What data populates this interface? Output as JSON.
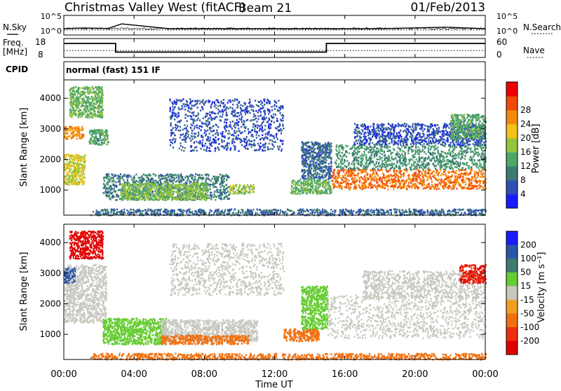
{
  "header": {
    "site": "Christmas Valley West (fitACF)",
    "beam": "Beam 21",
    "date": "01/Feb/2013"
  },
  "labels": {
    "nsky": "N.Sky",
    "nsearch": "N.Search",
    "freq_line1": "Freq.",
    "freq_line2": "[MHz]",
    "nave": "Nave",
    "cpid": "CPID",
    "cpid_value": "normal (fast) 151 IF",
    "slant_range": "Slant Range [km]",
    "time_ut": "Time UT"
  },
  "colors": {
    "power_scale": [
      "#1a1aff",
      "#2e4fb3",
      "#3d7a73",
      "#4da66a",
      "#96c43c",
      "#f2c21a",
      "#f58a0a",
      "#f04a0a",
      "#ee0000"
    ],
    "velocity_scale": [
      "#1a1aff",
      "#2b55a8",
      "#3d7a70",
      "#66cc33",
      "#c8c8c0",
      "#f0a020",
      "#f07010",
      "#ee3010",
      "#e00000"
    ],
    "ground_scatter_gray": "#c8c8c0"
  },
  "chart_data": [
    {
      "id": "noise_panel",
      "type": "line",
      "title": "",
      "xlabel": "",
      "ylabel_left": "N.Sky",
      "ylabel_right": "N.Search",
      "left_ticks": [
        "10^5",
        "10^0"
      ],
      "right_ticks": [
        "10^5",
        "10^0"
      ],
      "series": [
        {
          "name": "N.Sky",
          "style": "solid",
          "x": [
            0,
            0.3,
            1.2,
            2.5,
            3.3,
            6,
            10,
            14,
            18,
            21.8,
            24
          ],
          "y": [
            40,
            45,
            60,
            45,
            700,
            40,
            40,
            40,
            40,
            100,
            40
          ]
        },
        {
          "name": "N.Search",
          "style": "dotted",
          "x": [
            0,
            24
          ],
          "y": [
            20,
            20
          ]
        }
      ]
    },
    {
      "id": "freq_panel",
      "type": "line",
      "title": "",
      "xlabel": "",
      "ylabel_left": "Freq. [MHz]",
      "ylabel_right": "Nave",
      "left_ticks": [
        "18",
        "8"
      ],
      "right_ticks": [
        "60",
        "0"
      ],
      "ylim_left": [
        8,
        18
      ],
      "ylim_right": [
        0,
        60
      ],
      "series": [
        {
          "name": "Freq.",
          "style": "solid",
          "x": [
            0,
            2.95,
            2.95,
            14.95,
            14.95,
            24
          ],
          "y": [
            15.4,
            15.4,
            10.8,
            10.8,
            15.4,
            15.4
          ]
        },
        {
          "name": "Nave",
          "style": "dotted",
          "x": [
            0,
            24
          ],
          "y": [
            22,
            22
          ]
        }
      ]
    },
    {
      "id": "power_panel",
      "type": "heatmap",
      "title": "",
      "xlabel": "",
      "ylabel": "Slant Range [km]",
      "xlim": [
        0,
        24
      ],
      "ylim": [
        180,
        4600
      ],
      "yticks": [
        1000,
        2000,
        3000,
        4000
      ],
      "colorbar": {
        "label": "Power [dB]",
        "range": [
          0,
          32
        ],
        "ticks": [
          "4",
          "8",
          "12",
          "16",
          "20",
          "24",
          "28"
        ]
      },
      "regions": [
        {
          "t0": 0.0,
          "t1": 1.2,
          "r0": 1200,
          "r1": 2200,
          "value": 20
        },
        {
          "t0": 0.0,
          "t1": 1.1,
          "r0": 2700,
          "r1": 3100,
          "value": 26
        },
        {
          "t0": 0.3,
          "t1": 2.2,
          "r0": 3400,
          "r1": 4400,
          "value": 15
        },
        {
          "t0": 1.4,
          "t1": 2.5,
          "r0": 2500,
          "r1": 3000,
          "value": 14
        },
        {
          "t0": 2.2,
          "t1": 9.4,
          "r0": 700,
          "r1": 1550,
          "value": 10
        },
        {
          "t0": 3.2,
          "t1": 8.2,
          "r0": 700,
          "r1": 1250,
          "value": 17
        },
        {
          "t0": 9.4,
          "t1": 10.8,
          "r0": 900,
          "r1": 1200,
          "value": 18
        },
        {
          "t0": 6.0,
          "t1": 12.5,
          "r0": 2300,
          "r1": 4000,
          "value": 6
        },
        {
          "t0": 12.9,
          "t1": 15.2,
          "r0": 900,
          "r1": 1400,
          "value": 15
        },
        {
          "t0": 13.5,
          "t1": 15.2,
          "r0": 1400,
          "r1": 2600,
          "value": 8
        },
        {
          "t0": 15.2,
          "t1": 24.0,
          "r0": 1050,
          "r1": 1700,
          "value": 28
        },
        {
          "t0": 15.4,
          "t1": 24.0,
          "r0": 1700,
          "r1": 2500,
          "value": 12
        },
        {
          "t0": 16.5,
          "t1": 24.0,
          "r0": 2500,
          "r1": 3200,
          "value": 6
        },
        {
          "t0": 22.0,
          "t1": 24.0,
          "r0": 2700,
          "r1": 3500,
          "value": 14
        },
        {
          "t0": 1.5,
          "t1": 24.0,
          "r0": 200,
          "r1": 400,
          "value": 8
        }
      ]
    },
    {
      "id": "velocity_panel",
      "type": "heatmap",
      "title": "",
      "xlabel": "Time UT",
      "ylabel": "Slant Range [km]",
      "xlim": [
        0,
        24
      ],
      "ylim": [
        180,
        4600
      ],
      "yticks": [
        1000,
        2000,
        3000,
        4000
      ],
      "xticks": [
        "00:00",
        "04:00",
        "08:00",
        "12:00",
        "16:00",
        "20:00",
        "00:00"
      ],
      "colorbar": {
        "label": "Velocity [m s⁻¹]",
        "ticks": [
          "200",
          "100",
          "50",
          "15",
          "-15",
          "-50",
          "-100",
          "-200"
        ]
      },
      "regions": [
        {
          "t0": 0.0,
          "t1": 2.4,
          "r0": 1400,
          "r1": 3300,
          "value": -5
        },
        {
          "t0": 0.3,
          "t1": 2.2,
          "r0": 3500,
          "r1": 4400,
          "value": -250
        },
        {
          "t0": 0.0,
          "t1": 0.6,
          "r0": 2700,
          "r1": 3200,
          "value": 120
        },
        {
          "t0": 2.2,
          "t1": 5.8,
          "r0": 700,
          "r1": 1550,
          "value": 40
        },
        {
          "t0": 5.5,
          "t1": 11.0,
          "r0": 800,
          "r1": 1500,
          "value": -5
        },
        {
          "t0": 5.5,
          "t1": 10.5,
          "r0": 700,
          "r1": 1000,
          "value": -70
        },
        {
          "t0": 6.0,
          "t1": 12.5,
          "r0": 2300,
          "r1": 4000,
          "value": -5
        },
        {
          "t0": 12.5,
          "t1": 14.5,
          "r0": 800,
          "r1": 1200,
          "value": -70
        },
        {
          "t0": 13.5,
          "t1": 15.0,
          "r0": 1200,
          "r1": 2600,
          "value": 40
        },
        {
          "t0": 15.0,
          "t1": 24.0,
          "r0": 900,
          "r1": 2300,
          "value": -5
        },
        {
          "t0": 17.0,
          "t1": 24.0,
          "r0": 2200,
          "r1": 3100,
          "value": -5
        },
        {
          "t0": 22.5,
          "t1": 24.0,
          "r0": 2700,
          "r1": 3300,
          "value": -200
        },
        {
          "t0": 1.5,
          "t1": 24.0,
          "r0": 200,
          "r1": 400,
          "value": -60
        }
      ]
    }
  ]
}
